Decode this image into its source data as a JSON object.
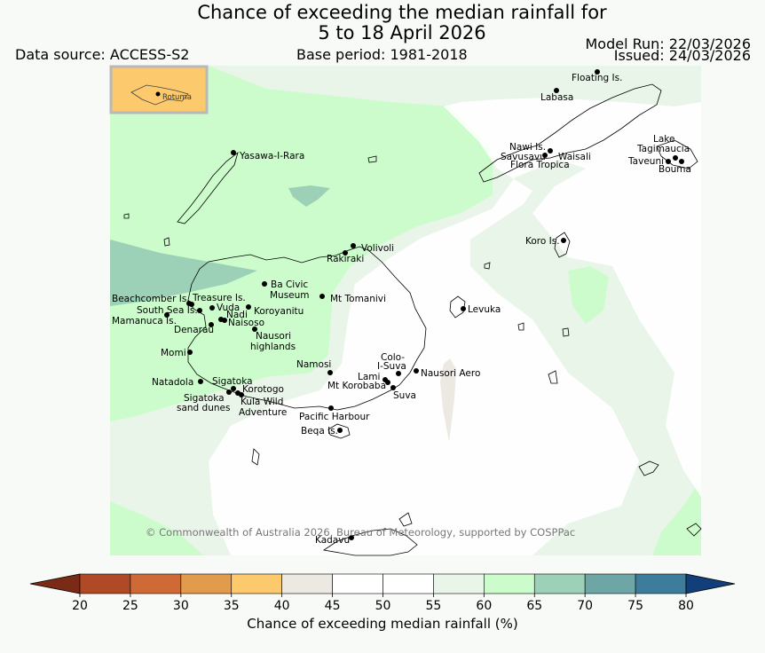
{
  "title": {
    "line1": "Chance of exceeding the median rainfall for",
    "line2": "5 to 18 April 2026"
  },
  "header": {
    "data_source": "Data source: ACCESS-S2",
    "base_period": "Base period: 1981-2018",
    "model_run": "Model Run: 22/03/2026",
    "issued": "Issued: 24/03/2026"
  },
  "inset": {
    "label": "Rotuma"
  },
  "copyright": "© Commonwealth of Australia 2026, Bureau of Meteorology, supported by COSPPac",
  "places": {
    "floating": "Floating Is.",
    "labasa": "Labasa",
    "nawi": "Nawi Is.",
    "savusavu": "Savusavu",
    "waisali": "Waisali",
    "flora": "Flora Tropica",
    "lake1": "Lake",
    "lake2": "Tagimaucia",
    "taveuni": "Taveuni",
    "bouma": "Bouma",
    "yasawa": "Yasawa-I-Rara",
    "koro": "Koro Is.",
    "volivoli": "Volivoli",
    "rakiraki": "Rakiraki",
    "ba1": "Ba Civic",
    "ba2": "Museum",
    "tomanivi": "Mt Tomanivi",
    "beachcomber": "Beachcomber Is.",
    "treasure": "Treasure Is.",
    "southsea": "South Sea Is.",
    "vuda": "Vuda",
    "koroyanitu": "Koroyanitu",
    "nadi": "Nadi",
    "mamanuca": "Mamanuca Is.",
    "naisoso": "Naisoso",
    "denarau": "Denarau",
    "nausori1": "Nausori",
    "nausori2": "highlands",
    "levuka": "Levuka",
    "momi": "Momi",
    "namosi": "Namosi",
    "colo1": "Colo-",
    "colo2": "I-Suva",
    "nausori_aero": "Nausori Aero",
    "lami": "Lami",
    "korobaba": "Mt Korobaba",
    "suva": "Suva",
    "natadola": "Natadola",
    "sigatoka": "Sigatoka",
    "korotogo": "Korotogo",
    "sigdunes1": "Sigatoka",
    "sigdunes2": "sand dunes",
    "kula1": "Kula Wild",
    "kula2": "Adventure",
    "pacific": "Pacific Harbour",
    "beqa": "Beqa Is.",
    "kadavu": "Kadavu"
  },
  "colorbar": {
    "ticks": [
      "20",
      "25",
      "30",
      "35",
      "40",
      "45",
      "50",
      "55",
      "60",
      "65",
      "70",
      "75",
      "80"
    ],
    "colors": [
      "#7b2a16",
      "#b04a26",
      "#cf6a37",
      "#e29a4d",
      "#fcc96c",
      "#ece8e2",
      "#ffffff",
      "#ffffff",
      "#eaf5ea",
      "#ccfccc",
      "#9cd1b8",
      "#6ea6a6",
      "#3e7c9c",
      "#123f7a"
    ],
    "label": "Chance of exceeding median rainfall (%)"
  }
}
